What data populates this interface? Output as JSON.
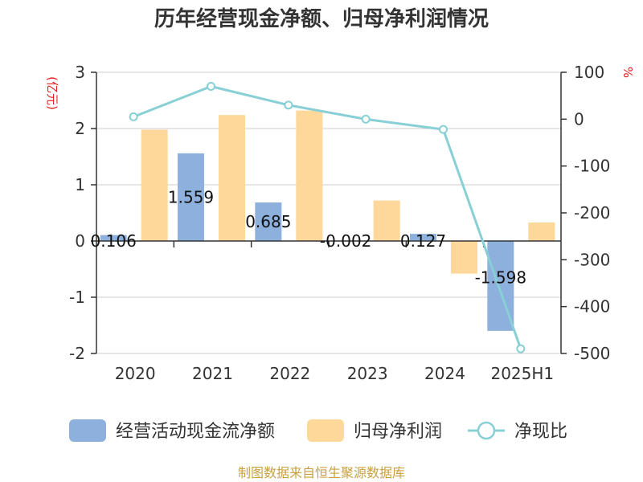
{
  "chart_data": {
    "type": "bar",
    "title": "历年经营现金净额、归母净利润情况",
    "categories": [
      "2020",
      "2021",
      "2022",
      "2023",
      "2024",
      "2025H1"
    ],
    "y_left": {
      "unit": "(亿元)",
      "range": [
        -2,
        3
      ],
      "ticks": [
        "3",
        "2",
        "1",
        "0",
        "-1",
        "-2"
      ]
    },
    "y_right": {
      "unit": "%",
      "range": [
        -500,
        100
      ],
      "ticks": [
        "100",
        "0",
        "-100",
        "-200",
        "-300",
        "-400",
        "-500"
      ]
    },
    "grid": true,
    "legend_position": "bottom",
    "series": [
      {
        "name": "经营活动现金流净额",
        "kind": "bar",
        "axis": "left",
        "color": "#8eb0dc",
        "values": [
          0.106,
          1.559,
          0.685,
          -0.002,
          0.127,
          -1.598
        ],
        "labels": [
          "0.106",
          "1.559",
          "0.685",
          "-0.002",
          "0.127",
          "-1.598"
        ]
      },
      {
        "name": "归母净利润",
        "kind": "bar",
        "axis": "left",
        "color": "#fdd89a",
        "values": [
          1.98,
          2.24,
          2.32,
          0.72,
          -0.58,
          0.33
        ]
      },
      {
        "name": "净现比",
        "kind": "line",
        "axis": "right",
        "color": "#88d0d6",
        "values": [
          5,
          70,
          30,
          0,
          -22,
          -490
        ]
      }
    ]
  },
  "source": "制图数据来自恒生聚源数据库"
}
